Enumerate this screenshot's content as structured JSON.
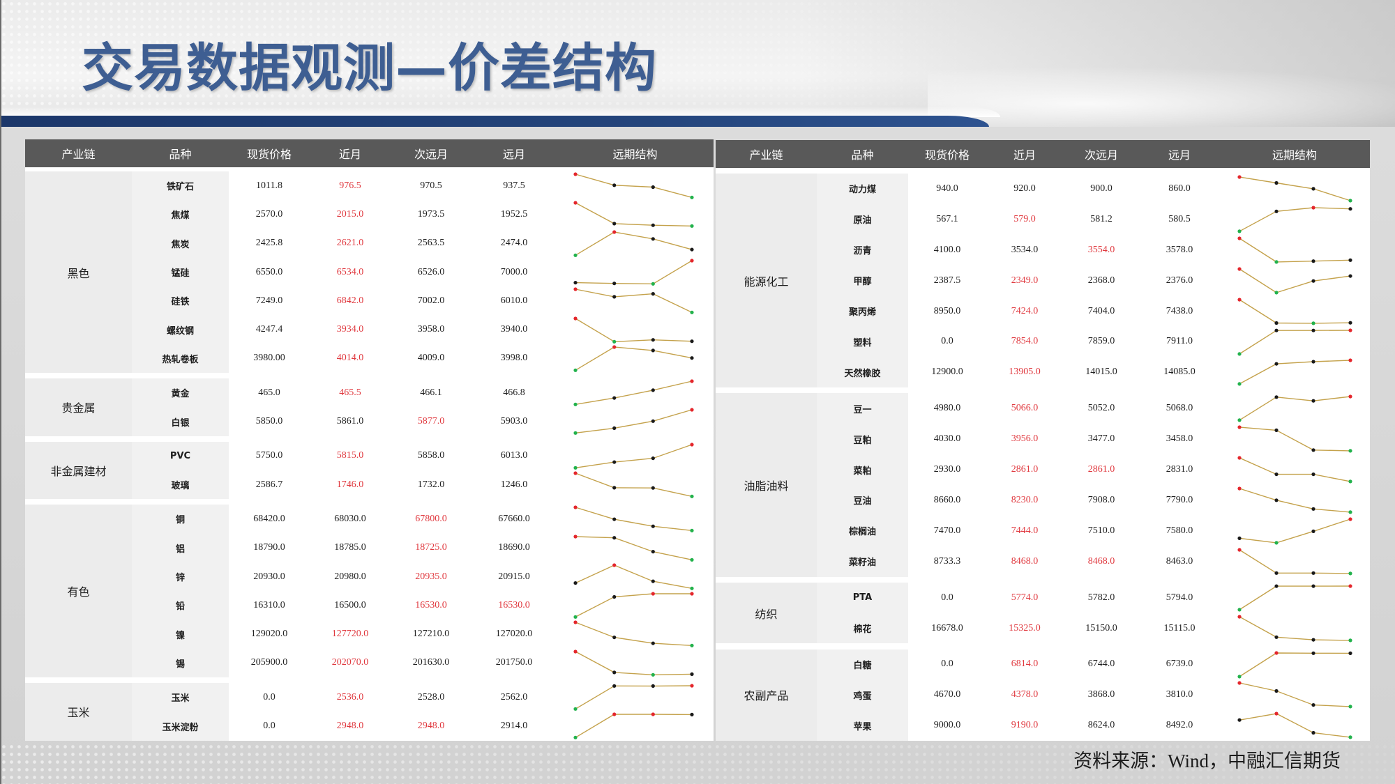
{
  "title": "交易数据观测—价差结构",
  "source": "资料来源：Wind，中融汇信期货",
  "colors": {
    "title": "#3e5e92",
    "nav_bar": "#1c376a",
    "header_bg": "#595959",
    "header_text": "#ffffff",
    "group_bg": "#ececec",
    "variety_bg": "#f1f1f1",
    "highlight_text": "#e0383e",
    "sparkline": "#c4a24c",
    "marker_max": "#e4262c",
    "marker_min": "#22b24c",
    "marker_other": "#1a1a1a"
  },
  "tables": [
    {
      "headers": [
        "产业链",
        "品种",
        "现货价格",
        "近月",
        "次远月",
        "远月",
        "远期结构"
      ],
      "groups": [
        {
          "name": "黑色",
          "items": [
            {
              "name": "铁矿石",
              "values": [
                "1011.8",
                "976.5",
                "970.5",
                "937.5"
              ],
              "highlight": [
                false,
                true,
                false,
                false
              ]
            },
            {
              "name": "焦煤",
              "values": [
                "2570.0",
                "2015.0",
                "1973.5",
                "1952.5"
              ],
              "highlight": [
                false,
                true,
                false,
                false
              ]
            },
            {
              "name": "焦炭",
              "values": [
                "2425.8",
                "2621.0",
                "2563.5",
                "2474.0"
              ],
              "highlight": [
                false,
                true,
                false,
                false
              ]
            },
            {
              "name": "锰硅",
              "values": [
                "6550.0",
                "6534.0",
                "6526.0",
                "7000.0"
              ],
              "highlight": [
                false,
                true,
                false,
                false
              ]
            },
            {
              "name": "硅铁",
              "values": [
                "7249.0",
                "6842.0",
                "7002.0",
                "6010.0"
              ],
              "highlight": [
                false,
                true,
                false,
                false
              ]
            },
            {
              "name": "螺纹钢",
              "values": [
                "4247.4",
                "3934.0",
                "3958.0",
                "3940.0"
              ],
              "highlight": [
                false,
                true,
                false,
                false
              ]
            },
            {
              "name": "热轧卷板",
              "values": [
                "3980.00",
                "4014.0",
                "4009.0",
                "3998.0"
              ],
              "highlight": [
                false,
                true,
                false,
                false
              ]
            }
          ]
        },
        {
          "name": "贵金属",
          "items": [
            {
              "name": "黄金",
              "values": [
                "465.0",
                "465.5",
                "466.1",
                "466.8"
              ],
              "highlight": [
                false,
                true,
                false,
                false
              ]
            },
            {
              "name": "白银",
              "values": [
                "5850.0",
                "5861.0",
                "5877.0",
                "5903.0"
              ],
              "highlight": [
                false,
                false,
                true,
                false
              ]
            }
          ]
        },
        {
          "name": "非金属建材",
          "items": [
            {
              "name": "PVC",
              "values": [
                "5750.0",
                "5815.0",
                "5858.0",
                "6013.0"
              ],
              "highlight": [
                false,
                true,
                false,
                false
              ]
            },
            {
              "name": "玻璃",
              "values": [
                "2586.7",
                "1746.0",
                "1732.0",
                "1246.0"
              ],
              "highlight": [
                false,
                true,
                false,
                false
              ]
            }
          ]
        },
        {
          "name": "有色",
          "items": [
            {
              "name": "铜",
              "values": [
                "68420.0",
                "68030.0",
                "67800.0",
                "67660.0"
              ],
              "highlight": [
                false,
                false,
                true,
                false
              ]
            },
            {
              "name": "铝",
              "values": [
                "18790.0",
                "18785.0",
                "18725.0",
                "18690.0"
              ],
              "highlight": [
                false,
                false,
                true,
                false
              ]
            },
            {
              "name": "锌",
              "values": [
                "20930.0",
                "20980.0",
                "20935.0",
                "20915.0"
              ],
              "highlight": [
                false,
                false,
                true,
                false
              ]
            },
            {
              "name": "铅",
              "values": [
                "16310.0",
                "16500.0",
                "16530.0",
                "16530.0"
              ],
              "highlight": [
                false,
                false,
                true,
                true
              ]
            },
            {
              "name": "镍",
              "values": [
                "129020.0",
                "127720.0",
                "127210.0",
                "127020.0"
              ],
              "highlight": [
                false,
                true,
                false,
                false
              ]
            },
            {
              "name": "锡",
              "values": [
                "205900.0",
                "202070.0",
                "201630.0",
                "201750.0"
              ],
              "highlight": [
                false,
                true,
                false,
                false
              ]
            }
          ]
        },
        {
          "name": "玉米",
          "items": [
            {
              "name": "玉米",
              "values": [
                "0.0",
                "2536.0",
                "2528.0",
                "2562.0"
              ],
              "highlight": [
                false,
                true,
                false,
                false
              ]
            },
            {
              "name": "玉米淀粉",
              "values": [
                "0.0",
                "2948.0",
                "2948.0",
                "2914.0"
              ],
              "highlight": [
                false,
                true,
                true,
                false
              ]
            }
          ]
        }
      ]
    },
    {
      "headers": [
        "产业链",
        "品种",
        "现货价格",
        "近月",
        "次远月",
        "远月",
        "远期结构"
      ],
      "groups": [
        {
          "name": "能源化工",
          "items": [
            {
              "name": "动力煤",
              "values": [
                "940.0",
                "920.0",
                "900.0",
                "860.0"
              ],
              "highlight": [
                false,
                false,
                false,
                false
              ]
            },
            {
              "name": "原油",
              "values": [
                "567.1",
                "579.0",
                "581.2",
                "580.5"
              ],
              "highlight": [
                false,
                true,
                false,
                false
              ]
            },
            {
              "name": "沥青",
              "values": [
                "4100.0",
                "3534.0",
                "3554.0",
                "3578.0"
              ],
              "highlight": [
                false,
                false,
                true,
                false
              ]
            },
            {
              "name": "甲醇",
              "values": [
                "2387.5",
                "2349.0",
                "2368.0",
                "2376.0"
              ],
              "highlight": [
                false,
                true,
                false,
                false
              ]
            },
            {
              "name": "聚丙烯",
              "values": [
                "8950.0",
                "7424.0",
                "7404.0",
                "7438.0"
              ],
              "highlight": [
                false,
                true,
                false,
                false
              ]
            },
            {
              "name": "塑料",
              "values": [
                "0.0",
                "7854.0",
                "7859.0",
                "7911.0"
              ],
              "highlight": [
                false,
                true,
                false,
                false
              ]
            },
            {
              "name": "天然橡胶",
              "values": [
                "12900.0",
                "13905.0",
                "14015.0",
                "14085.0"
              ],
              "highlight": [
                false,
                true,
                false,
                false
              ]
            }
          ]
        },
        {
          "name": "油脂油料",
          "items": [
            {
              "name": "豆一",
              "values": [
                "4980.0",
                "5066.0",
                "5052.0",
                "5068.0"
              ],
              "highlight": [
                false,
                true,
                false,
                false
              ]
            },
            {
              "name": "豆粕",
              "values": [
                "4030.0",
                "3956.0",
                "3477.0",
                "3458.0"
              ],
              "highlight": [
                false,
                true,
                false,
                false
              ]
            },
            {
              "name": "菜粕",
              "values": [
                "2930.0",
                "2861.0",
                "2861.0",
                "2831.0"
              ],
              "highlight": [
                false,
                true,
                true,
                false
              ]
            },
            {
              "name": "豆油",
              "values": [
                "8660.0",
                "8230.0",
                "7908.0",
                "7790.0"
              ],
              "highlight": [
                false,
                true,
                false,
                false
              ]
            },
            {
              "name": "棕榈油",
              "values": [
                "7470.0",
                "7444.0",
                "7510.0",
                "7580.0"
              ],
              "highlight": [
                false,
                true,
                false,
                false
              ]
            },
            {
              "name": "菜籽油",
              "values": [
                "8733.3",
                "8468.0",
                "8468.0",
                "8463.0"
              ],
              "highlight": [
                false,
                true,
                true,
                false
              ]
            }
          ]
        },
        {
          "name": "纺织",
          "items": [
            {
              "name": "PTA",
              "values": [
                "0.0",
                "5774.0",
                "5782.0",
                "5794.0"
              ],
              "highlight": [
                false,
                true,
                false,
                false
              ]
            },
            {
              "name": "棉花",
              "values": [
                "16678.0",
                "15325.0",
                "15150.0",
                "15115.0"
              ],
              "highlight": [
                false,
                true,
                false,
                false
              ]
            }
          ]
        },
        {
          "name": "农副产品",
          "items": [
            {
              "name": "白糖",
              "values": [
                "0.0",
                "6814.0",
                "6744.0",
                "6739.0"
              ],
              "highlight": [
                false,
                true,
                false,
                false
              ]
            },
            {
              "name": "鸡蛋",
              "values": [
                "4670.0",
                "4378.0",
                "3868.0",
                "3810.0"
              ],
              "highlight": [
                false,
                true,
                false,
                false
              ]
            },
            {
              "name": "苹果",
              "values": [
                "9000.0",
                "9190.0",
                "8624.0",
                "8492.0"
              ],
              "highlight": [
                false,
                true,
                false,
                false
              ]
            }
          ]
        }
      ]
    }
  ]
}
